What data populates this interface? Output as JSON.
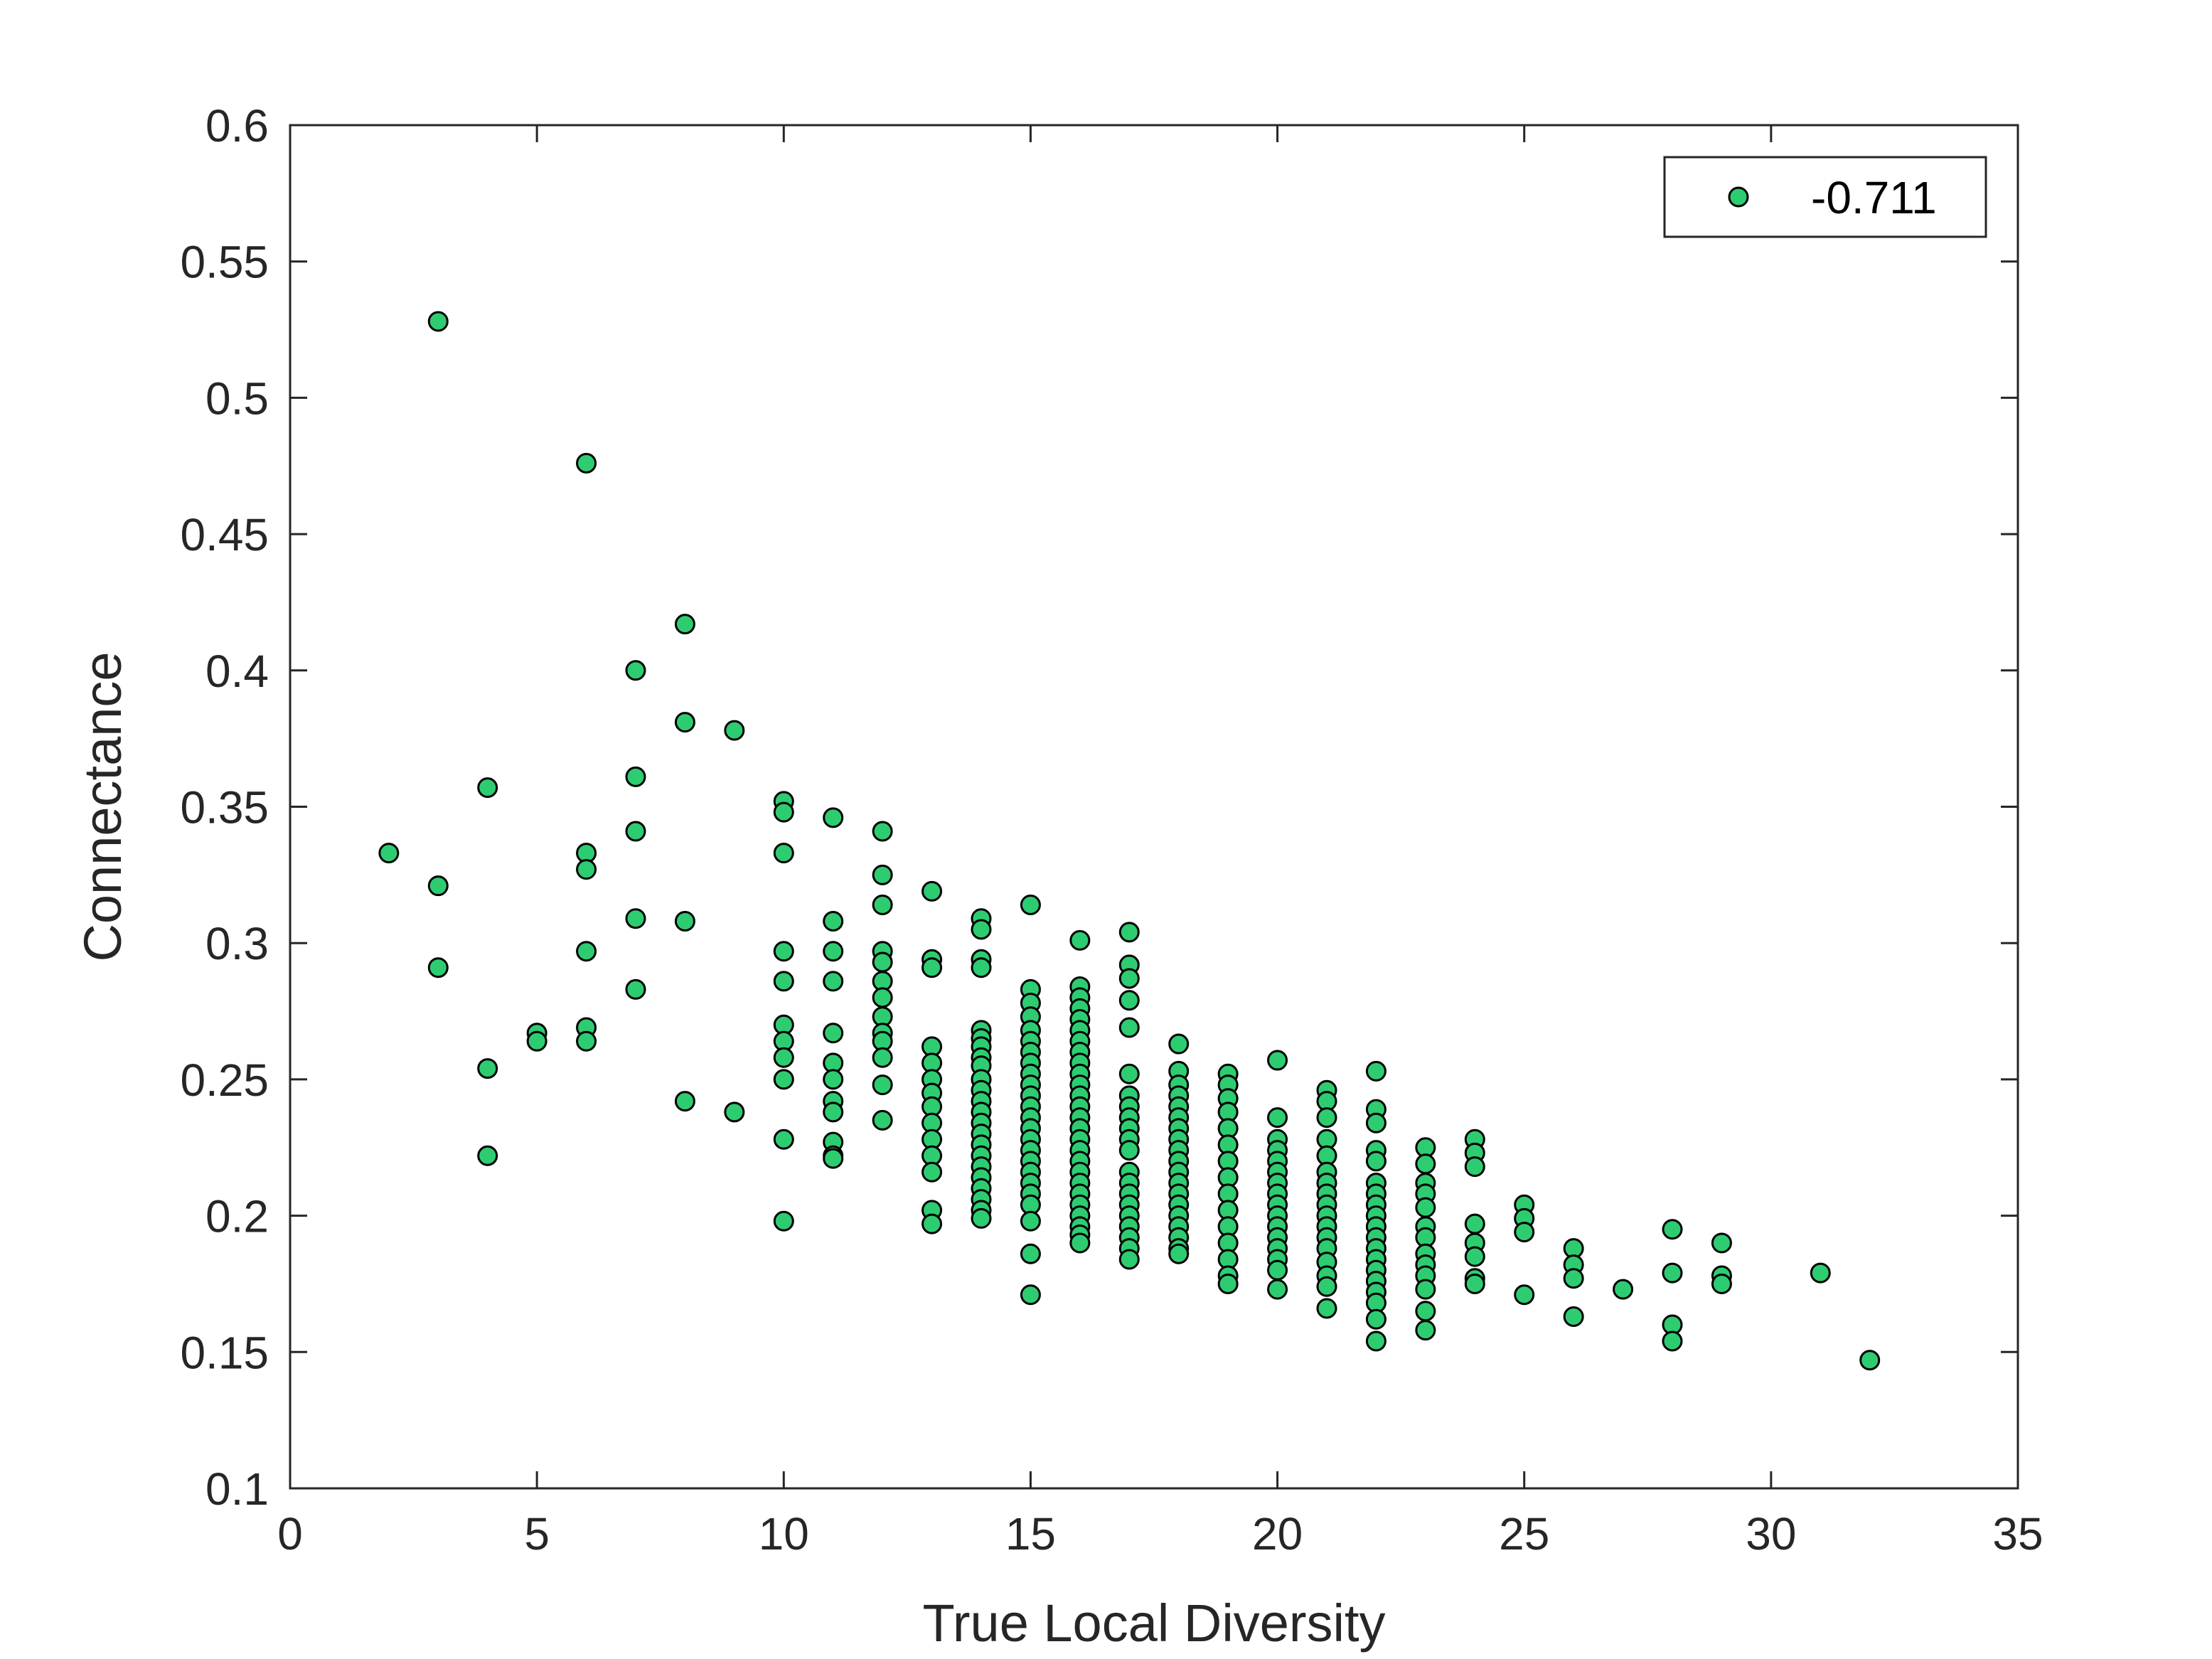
{
  "chart_data": {
    "type": "scatter",
    "xlabel": "True Local Diversity",
    "ylabel": "Connectance",
    "xlim": [
      0,
      35
    ],
    "ylim": [
      0.1,
      0.6
    ],
    "xticks": [
      0,
      5,
      10,
      15,
      20,
      25,
      30,
      35
    ],
    "yticks": [
      0.1,
      0.15,
      0.2,
      0.25,
      0.3,
      0.35,
      0.4,
      0.45,
      0.5,
      0.55,
      0.6
    ],
    "grid": false,
    "box": true,
    "legend_position": "top-right",
    "colors": {
      "marker_fill": "#2ECC71",
      "marker_edge": "#000000",
      "axes": "#262626"
    },
    "series": [
      {
        "name": "-0.711",
        "points": [
          [
            2,
            0.333
          ],
          [
            3,
            0.528
          ],
          [
            3,
            0.321
          ],
          [
            3,
            0.291
          ],
          [
            4,
            0.357
          ],
          [
            4,
            0.254
          ],
          [
            4,
            0.222
          ],
          [
            5,
            0.267
          ],
          [
            5,
            0.264
          ],
          [
            6,
            0.476
          ],
          [
            6,
            0.333
          ],
          [
            6,
            0.327
          ],
          [
            6,
            0.297
          ],
          [
            6,
            0.269
          ],
          [
            6,
            0.264
          ],
          [
            7,
            0.4
          ],
          [
            7,
            0.361
          ],
          [
            7,
            0.341
          ],
          [
            7,
            0.309
          ],
          [
            7,
            0.283
          ],
          [
            8,
            0.417
          ],
          [
            8,
            0.381
          ],
          [
            8,
            0.308
          ],
          [
            8,
            0.242
          ],
          [
            9,
            0.378
          ],
          [
            9,
            0.238
          ],
          [
            10,
            0.352
          ],
          [
            10,
            0.348
          ],
          [
            10,
            0.333
          ],
          [
            10,
            0.297
          ],
          [
            10,
            0.286
          ],
          [
            10,
            0.27
          ],
          [
            10,
            0.264
          ],
          [
            10,
            0.258
          ],
          [
            10,
            0.25
          ],
          [
            10,
            0.228
          ],
          [
            10,
            0.198
          ],
          [
            11,
            0.346
          ],
          [
            11,
            0.308
          ],
          [
            11,
            0.297
          ],
          [
            11,
            0.286
          ],
          [
            11,
            0.267
          ],
          [
            11,
            0.256
          ],
          [
            11,
            0.25
          ],
          [
            11,
            0.242
          ],
          [
            11,
            0.238
          ],
          [
            11,
            0.227
          ],
          [
            11,
            0.222
          ],
          [
            11,
            0.221
          ],
          [
            12,
            0.341
          ],
          [
            12,
            0.325
          ],
          [
            12,
            0.314
          ],
          [
            12,
            0.297
          ],
          [
            12,
            0.293
          ],
          [
            12,
            0.286
          ],
          [
            12,
            0.28
          ],
          [
            12,
            0.273
          ],
          [
            12,
            0.267
          ],
          [
            12,
            0.264
          ],
          [
            12,
            0.258
          ],
          [
            12,
            0.248
          ],
          [
            12,
            0.235
          ],
          [
            13,
            0.319
          ],
          [
            13,
            0.294
          ],
          [
            13,
            0.291
          ],
          [
            13,
            0.262
          ],
          [
            13,
            0.256
          ],
          [
            13,
            0.25
          ],
          [
            13,
            0.245
          ],
          [
            13,
            0.24
          ],
          [
            13,
            0.234
          ],
          [
            13,
            0.228
          ],
          [
            13,
            0.222
          ],
          [
            13,
            0.216
          ],
          [
            13,
            0.202
          ],
          [
            13,
            0.197
          ],
          [
            14,
            0.309
          ],
          [
            14,
            0.305
          ],
          [
            14,
            0.294
          ],
          [
            14,
            0.291
          ],
          [
            14,
            0.268
          ],
          [
            14,
            0.265
          ],
          [
            14,
            0.262
          ],
          [
            14,
            0.258
          ],
          [
            14,
            0.255
          ],
          [
            14,
            0.25
          ],
          [
            14,
            0.246
          ],
          [
            14,
            0.242
          ],
          [
            14,
            0.238
          ],
          [
            14,
            0.234
          ],
          [
            14,
            0.23
          ],
          [
            14,
            0.226
          ],
          [
            14,
            0.222
          ],
          [
            14,
            0.218
          ],
          [
            14,
            0.214
          ],
          [
            14,
            0.21
          ],
          [
            14,
            0.206
          ],
          [
            14,
            0.202
          ],
          [
            14,
            0.199
          ],
          [
            15,
            0.314
          ],
          [
            15,
            0.283
          ],
          [
            15,
            0.278
          ],
          [
            15,
            0.273
          ],
          [
            15,
            0.268
          ],
          [
            15,
            0.264
          ],
          [
            15,
            0.26
          ],
          [
            15,
            0.256
          ],
          [
            15,
            0.252
          ],
          [
            15,
            0.248
          ],
          [
            15,
            0.244
          ],
          [
            15,
            0.24
          ],
          [
            15,
            0.236
          ],
          [
            15,
            0.232
          ],
          [
            15,
            0.228
          ],
          [
            15,
            0.224
          ],
          [
            15,
            0.22
          ],
          [
            15,
            0.216
          ],
          [
            15,
            0.212
          ],
          [
            15,
            0.208
          ],
          [
            15,
            0.204
          ],
          [
            15,
            0.198
          ],
          [
            15,
            0.186
          ],
          [
            15,
            0.171
          ],
          [
            16,
            0.301
          ],
          [
            16,
            0.284
          ],
          [
            16,
            0.28
          ],
          [
            16,
            0.276
          ],
          [
            16,
            0.272
          ],
          [
            16,
            0.268
          ],
          [
            16,
            0.264
          ],
          [
            16,
            0.26
          ],
          [
            16,
            0.256
          ],
          [
            16,
            0.252
          ],
          [
            16,
            0.248
          ],
          [
            16,
            0.244
          ],
          [
            16,
            0.24
          ],
          [
            16,
            0.236
          ],
          [
            16,
            0.232
          ],
          [
            16,
            0.228
          ],
          [
            16,
            0.224
          ],
          [
            16,
            0.22
          ],
          [
            16,
            0.216
          ],
          [
            16,
            0.212
          ],
          [
            16,
            0.208
          ],
          [
            16,
            0.204
          ],
          [
            16,
            0.2
          ],
          [
            16,
            0.196
          ],
          [
            16,
            0.193
          ],
          [
            16,
            0.19
          ],
          [
            17,
            0.304
          ],
          [
            17,
            0.292
          ],
          [
            17,
            0.287
          ],
          [
            17,
            0.279
          ],
          [
            17,
            0.269
          ],
          [
            17,
            0.252
          ],
          [
            17,
            0.244
          ],
          [
            17,
            0.24
          ],
          [
            17,
            0.236
          ],
          [
            17,
            0.232
          ],
          [
            17,
            0.228
          ],
          [
            17,
            0.224
          ],
          [
            17,
            0.216
          ],
          [
            17,
            0.212
          ],
          [
            17,
            0.208
          ],
          [
            17,
            0.204
          ],
          [
            17,
            0.2
          ],
          [
            17,
            0.196
          ],
          [
            17,
            0.192
          ],
          [
            17,
            0.188
          ],
          [
            17,
            0.184
          ],
          [
            18,
            0.263
          ],
          [
            18,
            0.253
          ],
          [
            18,
            0.248
          ],
          [
            18,
            0.244
          ],
          [
            18,
            0.24
          ],
          [
            18,
            0.236
          ],
          [
            18,
            0.232
          ],
          [
            18,
            0.228
          ],
          [
            18,
            0.224
          ],
          [
            18,
            0.22
          ],
          [
            18,
            0.216
          ],
          [
            18,
            0.212
          ],
          [
            18,
            0.208
          ],
          [
            18,
            0.204
          ],
          [
            18,
            0.2
          ],
          [
            18,
            0.196
          ],
          [
            18,
            0.192
          ],
          [
            18,
            0.188
          ],
          [
            18,
            0.186
          ],
          [
            19,
            0.252
          ],
          [
            19,
            0.248
          ],
          [
            19,
            0.243
          ],
          [
            19,
            0.238
          ],
          [
            19,
            0.232
          ],
          [
            19,
            0.226
          ],
          [
            19,
            0.22
          ],
          [
            19,
            0.214
          ],
          [
            19,
            0.208
          ],
          [
            19,
            0.202
          ],
          [
            19,
            0.196
          ],
          [
            19,
            0.19
          ],
          [
            19,
            0.184
          ],
          [
            19,
            0.178
          ],
          [
            19,
            0.175
          ],
          [
            20,
            0.257
          ],
          [
            20,
            0.236
          ],
          [
            20,
            0.228
          ],
          [
            20,
            0.224
          ],
          [
            20,
            0.22
          ],
          [
            20,
            0.216
          ],
          [
            20,
            0.212
          ],
          [
            20,
            0.208
          ],
          [
            20,
            0.204
          ],
          [
            20,
            0.2
          ],
          [
            20,
            0.196
          ],
          [
            20,
            0.192
          ],
          [
            20,
            0.188
          ],
          [
            20,
            0.184
          ],
          [
            20,
            0.18
          ],
          [
            20,
            0.173
          ],
          [
            21,
            0.246
          ],
          [
            21,
            0.242
          ],
          [
            21,
            0.236
          ],
          [
            21,
            0.228
          ],
          [
            21,
            0.222
          ],
          [
            21,
            0.216
          ],
          [
            21,
            0.212
          ],
          [
            21,
            0.208
          ],
          [
            21,
            0.204
          ],
          [
            21,
            0.2
          ],
          [
            21,
            0.196
          ],
          [
            21,
            0.192
          ],
          [
            21,
            0.188
          ],
          [
            21,
            0.183
          ],
          [
            21,
            0.178
          ],
          [
            21,
            0.174
          ],
          [
            21,
            0.166
          ],
          [
            22,
            0.253
          ],
          [
            22,
            0.239
          ],
          [
            22,
            0.234
          ],
          [
            22,
            0.224
          ],
          [
            22,
            0.22
          ],
          [
            22,
            0.212
          ],
          [
            22,
            0.208
          ],
          [
            22,
            0.204
          ],
          [
            22,
            0.2
          ],
          [
            22,
            0.196
          ],
          [
            22,
            0.192
          ],
          [
            22,
            0.188
          ],
          [
            22,
            0.184
          ],
          [
            22,
            0.18
          ],
          [
            22,
            0.176
          ],
          [
            22,
            0.172
          ],
          [
            22,
            0.168
          ],
          [
            22,
            0.162
          ],
          [
            22,
            0.154
          ],
          [
            23,
            0.225
          ],
          [
            23,
            0.219
          ],
          [
            23,
            0.212
          ],
          [
            23,
            0.208
          ],
          [
            23,
            0.203
          ],
          [
            23,
            0.196
          ],
          [
            23,
            0.192
          ],
          [
            23,
            0.186
          ],
          [
            23,
            0.182
          ],
          [
            23,
            0.178
          ],
          [
            23,
            0.173
          ],
          [
            23,
            0.165
          ],
          [
            23,
            0.158
          ],
          [
            24,
            0.228
          ],
          [
            24,
            0.223
          ],
          [
            24,
            0.218
          ],
          [
            24,
            0.197
          ],
          [
            24,
            0.19
          ],
          [
            24,
            0.185
          ],
          [
            24,
            0.177
          ],
          [
            24,
            0.175
          ],
          [
            25,
            0.204
          ],
          [
            25,
            0.199
          ],
          [
            25,
            0.194
          ],
          [
            25,
            0.171
          ],
          [
            26,
            0.188
          ],
          [
            26,
            0.182
          ],
          [
            26,
            0.177
          ],
          [
            26,
            0.163
          ],
          [
            27,
            0.173
          ],
          [
            28,
            0.195
          ],
          [
            28,
            0.179
          ],
          [
            28,
            0.16
          ],
          [
            28,
            0.154
          ],
          [
            29,
            0.19
          ],
          [
            29,
            0.178
          ],
          [
            29,
            0.175
          ],
          [
            31,
            0.179
          ],
          [
            32,
            0.147
          ]
        ]
      }
    ]
  }
}
